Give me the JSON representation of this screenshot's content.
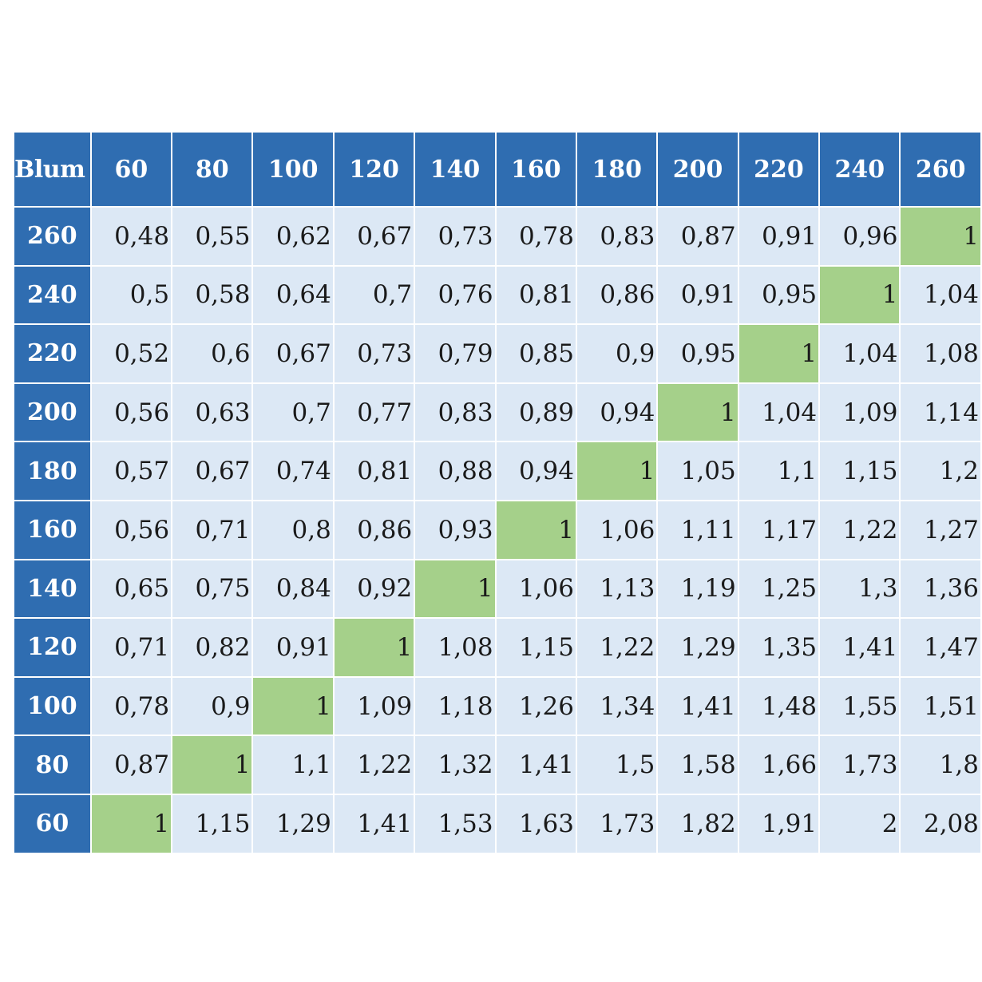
{
  "table": {
    "corner_label": "Blum",
    "columns": [
      "60",
      "80",
      "100",
      "120",
      "140",
      "160",
      "180",
      "200",
      "220",
      "240",
      "260"
    ],
    "rows": [
      {
        "label": "260",
        "cells": [
          "0,48",
          "0,55",
          "0,62",
          "0,67",
          "0,73",
          "0,78",
          "0,83",
          "0,87",
          "0,91",
          "0,96",
          "1"
        ],
        "highlight": 10
      },
      {
        "label": "240",
        "cells": [
          "0,5",
          "0,58",
          "0,64",
          "0,7",
          "0,76",
          "0,81",
          "0,86",
          "0,91",
          "0,95",
          "1",
          "1,04"
        ],
        "highlight": 9
      },
      {
        "label": "220",
        "cells": [
          "0,52",
          "0,6",
          "0,67",
          "0,73",
          "0,79",
          "0,85",
          "0,9",
          "0,95",
          "1",
          "1,04",
          "1,08"
        ],
        "highlight": 8
      },
      {
        "label": "200",
        "cells": [
          "0,56",
          "0,63",
          "0,7",
          "0,77",
          "0,83",
          "0,89",
          "0,94",
          "1",
          "1,04",
          "1,09",
          "1,14"
        ],
        "highlight": 7
      },
      {
        "label": "180",
        "cells": [
          "0,57",
          "0,67",
          "0,74",
          "0,81",
          "0,88",
          "0,94",
          "1",
          "1,05",
          "1,1",
          "1,15",
          "1,2"
        ],
        "highlight": 6
      },
      {
        "label": "160",
        "cells": [
          "0,56",
          "0,71",
          "0,8",
          "0,86",
          "0,93",
          "1",
          "1,06",
          "1,11",
          "1,17",
          "1,22",
          "1,27"
        ],
        "highlight": 5
      },
      {
        "label": "140",
        "cells": [
          "0,65",
          "0,75",
          "0,84",
          "0,92",
          "1",
          "1,06",
          "1,13",
          "1,19",
          "1,25",
          "1,3",
          "1,36"
        ],
        "highlight": 4
      },
      {
        "label": "120",
        "cells": [
          "0,71",
          "0,82",
          "0,91",
          "1",
          "1,08",
          "1,15",
          "1,22",
          "1,29",
          "1,35",
          "1,41",
          "1,47"
        ],
        "highlight": 3
      },
      {
        "label": "100",
        "cells": [
          "0,78",
          "0,9",
          "1",
          "1,09",
          "1,18",
          "1,26",
          "1,34",
          "1,41",
          "1,48",
          "1,55",
          "1,51"
        ],
        "highlight": 2
      },
      {
        "label": "80",
        "cells": [
          "0,87",
          "1",
          "1,1",
          "1,22",
          "1,32",
          "1,41",
          "1,5",
          "1,58",
          "1,66",
          "1,73",
          "1,8"
        ],
        "highlight": 1
      },
      {
        "label": "60",
        "cells": [
          "1",
          "1,15",
          "1,29",
          "1,41",
          "1,53",
          "1,63",
          "1,73",
          "1,82",
          "1,91",
          "2",
          "2,08"
        ],
        "highlight": 0
      }
    ]
  },
  "colors": {
    "header": "#2f6db1",
    "cell": "#dce8f5",
    "diagonal": "#a5d08a"
  }
}
